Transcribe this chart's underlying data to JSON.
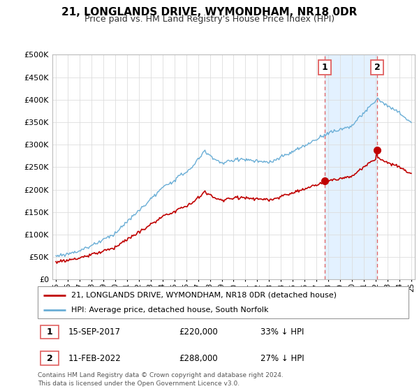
{
  "title": "21, LONGLANDS DRIVE, WYMONDHAM, NR18 0DR",
  "subtitle": "Price paid vs. HM Land Registry's House Price Index (HPI)",
  "legend_line1": "21, LONGLANDS DRIVE, WYMONDHAM, NR18 0DR (detached house)",
  "legend_line2": "HPI: Average price, detached house, South Norfolk",
  "annotation1_label": "1",
  "annotation1_date": "15-SEP-2017",
  "annotation1_price": 220000,
  "annotation1_pct": "33% ↓ HPI",
  "annotation2_label": "2",
  "annotation2_date": "11-FEB-2022",
  "annotation2_price": 288000,
  "annotation2_pct": "27% ↓ HPI",
  "footer": "Contains HM Land Registry data © Crown copyright and database right 2024.\nThis data is licensed under the Open Government Licence v3.0.",
  "hpi_color": "#6aaed6",
  "price_color": "#c00000",
  "annotation_line_color": "#e06060",
  "shade_color": "#ddeeff",
  "ylim": [
    0,
    500000
  ],
  "yticks": [
    0,
    50000,
    100000,
    150000,
    200000,
    250000,
    300000,
    350000,
    400000,
    450000,
    500000
  ],
  "xlim_start": 1994.7,
  "xlim_end": 2025.3
}
